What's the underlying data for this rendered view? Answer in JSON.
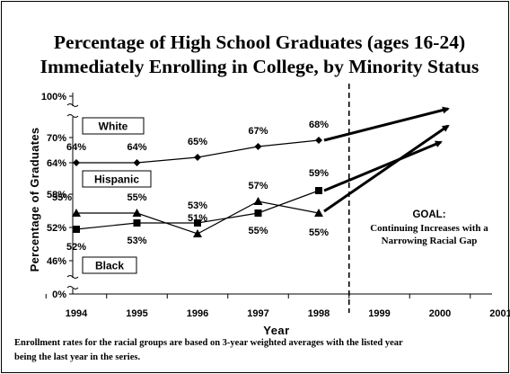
{
  "chart_data": {
    "type": "line",
    "title": [
      "Percentage of High School Graduates (ages 16-24)",
      "Immediately Enrolling in College, by Minority Status"
    ],
    "xlabel": "Year",
    "ylabel": "Percentage of Graduates",
    "categories": [
      "1994",
      "1995",
      "1996",
      "1997",
      "1998",
      "1999",
      "2000",
      "2001"
    ],
    "y_tick_labels": [
      "100%",
      "70%",
      "64%",
      "58%",
      "52%",
      "46%",
      "0%"
    ],
    "y_broken_axis": true,
    "series": [
      {
        "name": "White",
        "x": [
          "1994",
          "1995",
          "1996",
          "1997",
          "1998"
        ],
        "values": [
          64,
          64,
          65,
          67,
          68
        ],
        "labels": [
          "64%",
          "64%",
          "65%",
          "67%",
          "68%"
        ],
        "marker": "diamond"
      },
      {
        "name": "Hispanic",
        "x": [
          "1994",
          "1995",
          "1996",
          "1997",
          "1998"
        ],
        "values": [
          55,
          55,
          51,
          57,
          55
        ],
        "labels": [
          "55%",
          "55%",
          "51%",
          "57%",
          "55%"
        ],
        "marker": "triangle"
      },
      {
        "name": "Black",
        "x": [
          "1994",
          "1995",
          "1996",
          "1997",
          "1998"
        ],
        "values": [
          52,
          53,
          53,
          55,
          59
        ],
        "labels": [
          "52%",
          "53%",
          "53%",
          "55%",
          "59%"
        ],
        "marker": "square"
      }
    ],
    "goal": {
      "heading": "GOAL:",
      "text": [
        "Continuing Increases with a",
        "Narrowing Racial Gap"
      ]
    },
    "divider_after": "1998",
    "footnote": [
      "Enrollment rates for the racial groups are based on 3-year weighted averages with the listed year",
      "being the last year in the series."
    ]
  }
}
